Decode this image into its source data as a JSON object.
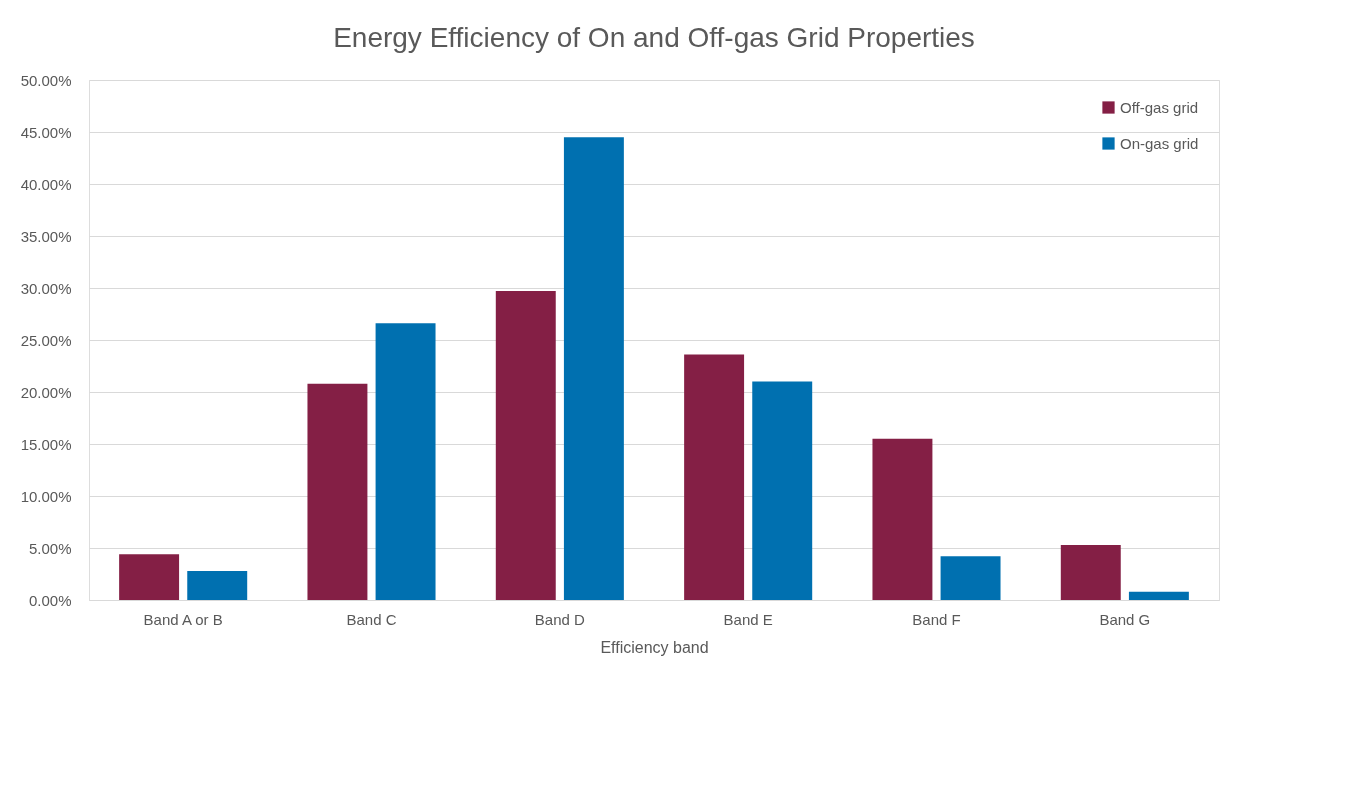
{
  "chart_data": {
    "type": "bar",
    "title": "Energy Efficiency of On and Off-gas Grid Properties",
    "xlabel": "Efficiency band",
    "categories": [
      "Band A or B",
      "Band C",
      "Band D",
      "Band E",
      "Band F",
      "Band G"
    ],
    "series": [
      {
        "name": "Off-gas grid",
        "color": "#841f45",
        "values": [
          4.4,
          20.8,
          29.7,
          23.6,
          15.5,
          5.3
        ]
      },
      {
        "name": "On-gas grid",
        "color": "#0070b0",
        "values": [
          2.8,
          26.6,
          44.5,
          21.0,
          4.2,
          0.8
        ]
      }
    ],
    "ylim": [
      0,
      50
    ],
    "yticks": [
      {
        "value": 0,
        "label": "0.00%"
      },
      {
        "value": 5,
        "label": "5.00%"
      },
      {
        "value": 10,
        "label": "10.00%"
      },
      {
        "value": 15,
        "label": "15.00%"
      },
      {
        "value": 20,
        "label": "20.00%"
      },
      {
        "value": 25,
        "label": "25.00%"
      },
      {
        "value": 30,
        "label": "30.00%"
      },
      {
        "value": 35,
        "label": "35.00%"
      },
      {
        "value": 40,
        "label": "40.00%"
      },
      {
        "value": 45,
        "label": "45.00%"
      },
      {
        "value": 50,
        "label": "50.00%"
      }
    ],
    "grid": "y",
    "legend": "top right"
  }
}
